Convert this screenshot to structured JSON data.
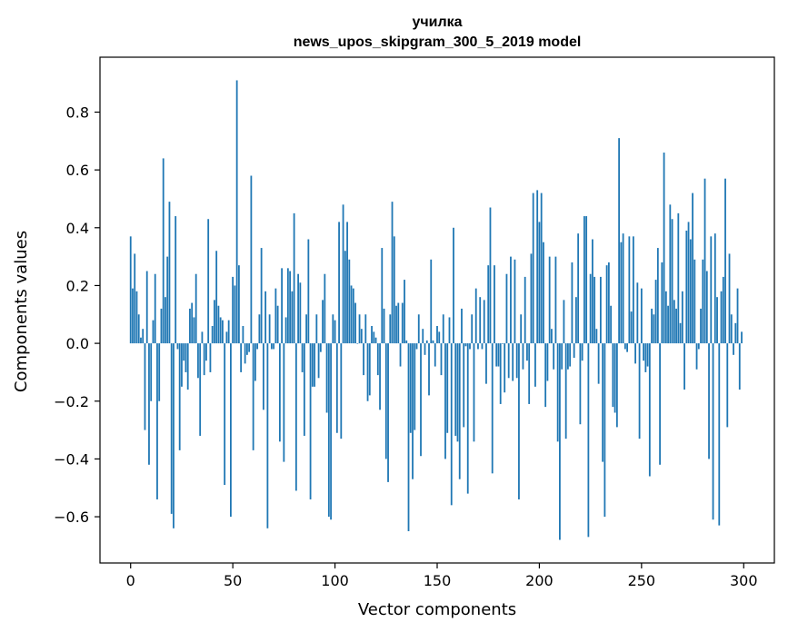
{
  "chart_data": {
    "type": "bar",
    "title_line1": "училка",
    "title_line2": "news_upos_skipgram_300_5_2019 model",
    "xlabel": "Vector components",
    "ylabel": "Components values",
    "xlim": [
      -15,
      315
    ],
    "ylim": [
      -0.76,
      0.99
    ],
    "bar_color": "#1f77b4",
    "x_ticks": [
      {
        "value": 0,
        "label": "0"
      },
      {
        "value": 50,
        "label": "50"
      },
      {
        "value": 100,
        "label": "100"
      },
      {
        "value": 150,
        "label": "150"
      },
      {
        "value": 200,
        "label": "200"
      },
      {
        "value": 250,
        "label": "250"
      },
      {
        "value": 300,
        "label": "300"
      }
    ],
    "y_ticks": [
      {
        "value": -0.6,
        "label": "−0.6"
      },
      {
        "value": -0.4,
        "label": "−0.4"
      },
      {
        "value": -0.2,
        "label": "−0.2"
      },
      {
        "value": 0.0,
        "label": "0.0"
      },
      {
        "value": 0.2,
        "label": "0.2"
      },
      {
        "value": 0.4,
        "label": "0.4"
      },
      {
        "value": 0.6,
        "label": "0.6"
      },
      {
        "value": 0.8,
        "label": "0.8"
      }
    ],
    "values": [
      0.37,
      0.19,
      0.31,
      0.18,
      0.1,
      0.02,
      0.05,
      -0.3,
      0.25,
      -0.42,
      -0.2,
      0.08,
      0.24,
      -0.54,
      -0.2,
      0.12,
      0.64,
      0.16,
      0.3,
      0.49,
      -0.59,
      -0.64,
      0.44,
      -0.02,
      -0.37,
      -0.15,
      -0.06,
      -0.1,
      -0.16,
      0.12,
      0.14,
      0.09,
      0.24,
      -0.12,
      -0.32,
      0.04,
      -0.11,
      -0.06,
      0.43,
      -0.1,
      0.06,
      0.15,
      0.32,
      0.13,
      0.09,
      0.08,
      -0.49,
      0.04,
      0.08,
      -0.6,
      0.23,
      0.2,
      0.91,
      0.27,
      -0.1,
      0.06,
      -0.07,
      -0.04,
      -0.03,
      0.58,
      -0.37,
      -0.13,
      -0.02,
      0.1,
      0.33,
      -0.23,
      0.18,
      -0.64,
      0.1,
      -0.02,
      -0.02,
      0.19,
      0.13,
      -0.34,
      0.26,
      -0.41,
      0.09,
      0.26,
      0.25,
      0.18,
      0.45,
      -0.51,
      0.24,
      0.21,
      -0.1,
      -0.32,
      0.1,
      0.36,
      -0.54,
      -0.15,
      -0.15,
      0.1,
      -0.12,
      -0.03,
      0.15,
      0.24,
      -0.24,
      -0.6,
      -0.61,
      0.1,
      0.08,
      -0.31,
      0.42,
      -0.33,
      0.48,
      0.32,
      0.42,
      0.29,
      0.2,
      0.19,
      0.14,
      0.0,
      0.1,
      0.05,
      -0.11,
      0.1,
      -0.2,
      -0.18,
      0.06,
      0.04,
      0.02,
      -0.11,
      -0.23,
      0.33,
      0.12,
      -0.4,
      -0.48,
      0.1,
      0.49,
      0.37,
      0.13,
      0.14,
      -0.08,
      0.14,
      0.22,
      0.01,
      -0.65,
      -0.31,
      -0.47,
      -0.3,
      -0.02,
      0.1,
      -0.39,
      0.05,
      -0.04,
      0.01,
      -0.18,
      0.29,
      0.01,
      -0.08,
      0.06,
      0.04,
      -0.11,
      0.1,
      -0.4,
      -0.31,
      0.09,
      -0.56,
      0.4,
      -0.32,
      -0.34,
      -0.47,
      0.12,
      -0.29,
      -0.01,
      -0.52,
      -0.02,
      0.1,
      -0.34,
      0.19,
      -0.02,
      0.16,
      -0.02,
      0.15,
      -0.14,
      0.27,
      0.47,
      -0.45,
      0.27,
      -0.08,
      -0.08,
      -0.21,
      0.0,
      -0.17,
      0.24,
      -0.12,
      0.3,
      -0.13,
      0.29,
      -0.12,
      -0.54,
      0.1,
      -0.09,
      0.23,
      -0.06,
      -0.21,
      0.31,
      0.52,
      -0.15,
      0.53,
      0.42,
      0.52,
      0.35,
      -0.22,
      -0.13,
      0.3,
      0.05,
      -0.09,
      0.3,
      -0.34,
      -0.68,
      -0.09,
      0.15,
      -0.33,
      -0.09,
      -0.08,
      0.28,
      -0.05,
      0.16,
      0.38,
      -0.28,
      -0.06,
      0.44,
      0.44,
      -0.67,
      0.24,
      0.36,
      0.23,
      0.05,
      -0.14,
      0.23,
      -0.41,
      -0.6,
      0.27,
      0.28,
      0.13,
      -0.22,
      -0.24,
      -0.29,
      0.71,
      0.35,
      0.38,
      -0.02,
      -0.03,
      0.37,
      0.11,
      0.37,
      -0.07,
      0.21,
      -0.33,
      0.19,
      -0.06,
      -0.1,
      -0.08,
      -0.46,
      0.12,
      0.1,
      0.22,
      0.33,
      -0.42,
      0.28,
      0.66,
      0.18,
      0.13,
      0.48,
      0.43,
      0.15,
      0.12,
      0.45,
      0.07,
      0.18,
      -0.16,
      0.39,
      0.42,
      0.36,
      0.52,
      0.29,
      -0.09,
      -0.02,
      0.12,
      0.29,
      0.57,
      0.25,
      -0.4,
      0.37,
      -0.61,
      0.38,
      0.16,
      -0.63,
      0.18,
      0.23,
      0.57,
      -0.29,
      0.31,
      0.1,
      -0.04,
      0.07,
      0.19,
      -0.16,
      0.04
    ]
  }
}
